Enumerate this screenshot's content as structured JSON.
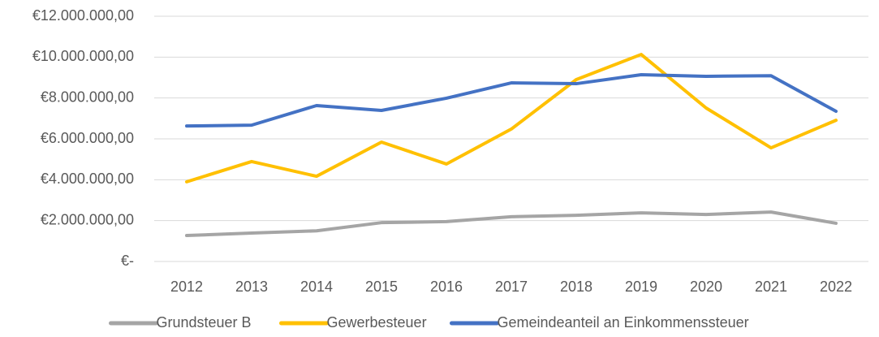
{
  "chart_data": {
    "type": "line",
    "categories": [
      "2012",
      "2013",
      "2014",
      "2015",
      "2016",
      "2017",
      "2018",
      "2019",
      "2020",
      "2021",
      "2022"
    ],
    "series": [
      {
        "name": "Grundsteuer B",
        "color": "#a5a5a5",
        "values": [
          1270000,
          1390000,
          1500000,
          1900000,
          1950000,
          2190000,
          2260000,
          2380000,
          2300000,
          2420000,
          1870000
        ]
      },
      {
        "name": "Gewerbesteuer",
        "color": "#ffc000",
        "values": [
          3900000,
          4890000,
          4170000,
          5840000,
          4770000,
          6480000,
          8900000,
          10130000,
          7510000,
          5560000,
          6910000
        ]
      },
      {
        "name": "Gemeindeanteil an Einkommenssteuer",
        "color": "#4472c4",
        "values": [
          6630000,
          6670000,
          7630000,
          7390000,
          7990000,
          8740000,
          8700000,
          9140000,
          9060000,
          9090000,
          7350000
        ]
      }
    ],
    "ylim": [
      0,
      12000000
    ],
    "yticks": [
      {
        "value": 0,
        "label": "€-"
      },
      {
        "value": 2000000,
        "label": "€2.000.000,00"
      },
      {
        "value": 4000000,
        "label": "€4.000.000,00"
      },
      {
        "value": 6000000,
        "label": "€6.000.000,00"
      },
      {
        "value": 8000000,
        "label": "€8.000.000,00"
      },
      {
        "value": 10000000,
        "label": "€10.000.000,00"
      },
      {
        "value": 12000000,
        "label": "€12.000.000,00"
      }
    ],
    "grid": true,
    "legend": "bottom"
  }
}
